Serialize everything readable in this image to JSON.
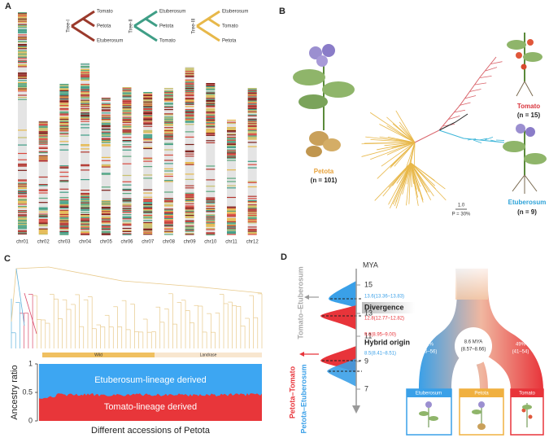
{
  "panel_a": {
    "label": "A",
    "trees": [
      {
        "name": "Tree-I",
        "leaves": [
          "Tomato",
          "Petota",
          "Etuberosum"
        ]
      },
      {
        "name": "Tree-II",
        "leaves": [
          "Etuberosum",
          "Petota",
          "Tomato"
        ]
      },
      {
        "name": "Tree-III",
        "leaves": [
          "Etuberosum",
          "Tomato",
          "Petota"
        ]
      }
    ],
    "chromosomes": [
      "chr01",
      "chr02",
      "chr03",
      "chr04",
      "chr05",
      "chr06",
      "chr07",
      "chr08",
      "chr09",
      "chr10",
      "chr11",
      "chr12"
    ]
  },
  "panel_b": {
    "label": "B",
    "petota": "Petota",
    "petota_n": "(n = 101)",
    "tomato": "Tomato",
    "tomato_n": "(n = 15)",
    "etuberosum": "Etuberosum",
    "etuberosum_n": "(n = 9)",
    "scale": "1.0",
    "support": "P = 30%"
  },
  "panel_c": {
    "label": "C",
    "y_label": "Ancestry ratio",
    "y_ticks": [
      "1",
      "0.5",
      "0"
    ],
    "groups": [
      "Wild",
      "Landrase"
    ],
    "bands": [
      "Etuberosum-lineage derived",
      "Tomato-lineage derived"
    ],
    "x_label": "Different accessions of Petota"
  },
  "panel_d": {
    "label": "D",
    "axis_title": "MYA",
    "axis_ticks": [
      "15",
      "13",
      "11",
      "9",
      "7"
    ],
    "pair_labels": [
      "Tomato–Etuberosum",
      "Petota–Tomato",
      "Petota–Etuberosum"
    ],
    "estimates": [
      "13.6(13.36–13.83)",
      "12.8(12.77–12.82)",
      "9.0(8.95–9.00)",
      "8.5(8.41–8.51)"
    ],
    "events": [
      "Divergence",
      "Hybrid origin"
    ],
    "left_share": [
      "51%",
      "(46–56)"
    ],
    "node_age": [
      "8.6 MYA",
      "(8.57–8.66)"
    ],
    "right_share": [
      "49%",
      "(41–54)"
    ],
    "taxa": [
      "Etuberosum",
      "Petota",
      "Tomato"
    ]
  }
}
